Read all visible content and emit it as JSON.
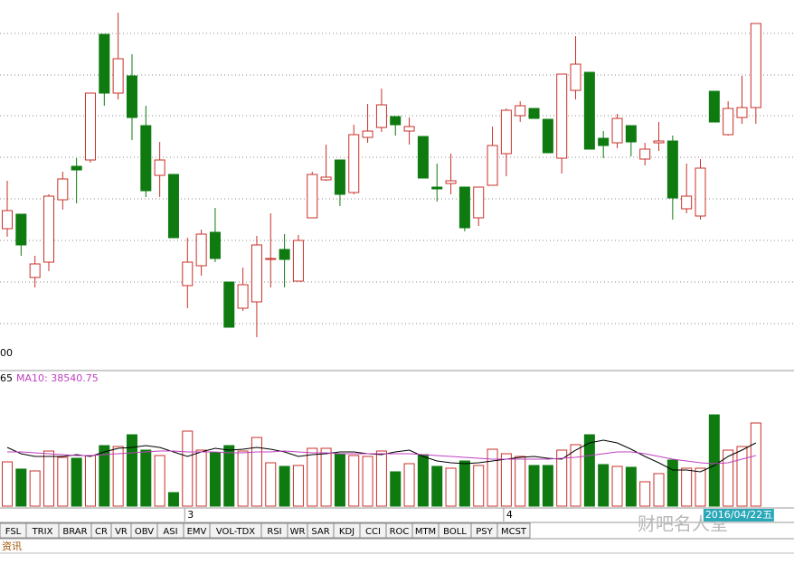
{
  "chart_data": {
    "type": "candlestick",
    "categories": [
      null,
      null,
      null,
      null,
      null,
      null,
      null,
      null,
      null,
      null,
      null,
      null,
      null,
      "3",
      null,
      null,
      null,
      null,
      null,
      null,
      null,
      null,
      null,
      null,
      null,
      null,
      null,
      null,
      null,
      null,
      null,
      null,
      null,
      null,
      null,
      null,
      "4",
      null,
      null,
      null,
      null,
      null,
      null,
      null,
      null,
      null,
      null,
      null,
      null,
      null,
      null,
      null,
      null,
      null,
      "2016/04/22五"
    ],
    "open": [
      147,
      163,
      93,
      110,
      179,
      216,
      223,
      362,
      297,
      316,
      261,
      206,
      207,
      84,
      106,
      143,
      88,
      59,
      66,
      113,
      124,
      89,
      159,
      201,
      223,
      187,
      248,
      259,
      271,
      255,
      249,
      193,
      197,
      193,
      159,
      195,
      230,
      272,
      280,
      268,
      225,
      300,
      320,
      247,
      242,
      261,
      224,
      242,
      244,
      169,
      161,
      299,
      251,
      270,
      281
    ],
    "high": [
      200,
      163,
      117,
      185,
      210,
      225,
      297,
      362,
      386,
      340,
      283,
      243,
      207,
      137,
      146,
      170,
      88,
      104,
      139,
      164,
      141,
      140,
      210,
      240,
      223,
      262,
      285,
      302,
      271,
      270,
      249,
      219,
      230,
      193,
      193,
      260,
      280,
      288,
      280,
      268,
      318,
      360,
      320,
      255,
      274,
      261,
      242,
      265,
      250,
      219,
      224,
      299,
      288,
      316,
      374
    ],
    "low": [
      138,
      117,
      82,
      100,
      168,
      175,
      220,
      283,
      290,
      245,
      182,
      182,
      137,
      59,
      95,
      110,
      38,
      56,
      27,
      82,
      82,
      89,
      159,
      200,
      172,
      185,
      242,
      254,
      250,
      240,
      203,
      177,
      185,
      144,
      150,
      195,
      205,
      265,
      269,
      231,
      208,
      290,
      235,
      225,
      236,
      227,
      217,
      233,
      157,
      164,
      157,
      265,
      250,
      263,
      263
    ],
    "close": [
      167,
      129,
      108,
      183,
      202,
      212,
      297,
      297,
      335,
      270,
      189,
      223,
      137,
      110,
      141,
      114,
      38,
      85,
      129,
      114,
      113,
      134,
      207,
      204,
      185,
      251,
      255,
      284,
      262,
      260,
      203,
      191,
      200,
      148,
      193,
      239,
      278,
      283,
      269,
      231,
      318,
      329,
      235,
      239,
      269,
      243,
      235,
      244,
      181,
      183,
      214,
      265,
      280,
      281,
      374
    ],
    "ylim": [
      0,
      400
    ],
    "yticks": [
      42,
      88,
      134,
      180,
      226,
      272,
      317,
      363
    ],
    "axis_text": "00",
    "up_color": "#c8302a",
    "down_color": "#0e7a10",
    "grid": true,
    "volume": {
      "values": [
        49,
        41,
        39,
        61,
        54,
        53,
        56,
        67,
        66,
        79,
        62,
        56,
        15,
        83,
        62,
        59,
        67,
        61,
        76,
        48,
        44,
        45,
        64,
        64,
        58,
        56,
        55,
        61,
        38,
        47,
        57,
        44,
        42,
        50,
        45,
        63,
        58,
        55,
        45,
        45,
        62,
        68,
        79,
        46,
        44,
        43,
        27,
        36,
        51,
        42,
        42,
        101,
        62,
        66,
        92
      ],
      "ylim": [
        0,
        150
      ],
      "label_left": "65",
      "ma_label": "MA10: 38540.75",
      "series": [
        {
          "name": "MA5",
          "color": "#000000",
          "values": [
            65,
            58,
            55,
            55,
            55,
            57,
            55,
            60,
            64,
            65,
            67,
            65,
            60,
            55,
            60,
            64,
            62,
            63,
            65,
            63,
            60,
            55,
            57,
            58,
            60,
            60,
            58,
            57,
            60,
            62,
            55,
            50,
            48,
            47,
            48,
            50,
            52,
            54,
            55,
            53,
            52,
            62,
            70,
            73,
            70,
            63,
            55,
            48,
            40,
            40,
            38,
            45,
            55,
            62,
            70
          ]
        },
        {
          "name": "MA10",
          "color": "#c040c0",
          "values": [
            60,
            60,
            59,
            58,
            57,
            56,
            56,
            57,
            58,
            59,
            60,
            61,
            61,
            60,
            60,
            60,
            59,
            59,
            60,
            60,
            61,
            60,
            59,
            59,
            58,
            58,
            58,
            58,
            58,
            58,
            57,
            56,
            55,
            54,
            53,
            52,
            52,
            52,
            52,
            52,
            53,
            54,
            56,
            58,
            60,
            60,
            58,
            55,
            52,
            50,
            48,
            47,
            48,
            52,
            56
          ]
        }
      ]
    },
    "tabs": [
      "FSL",
      "TRIX",
      "BRAR",
      "CR",
      "VR",
      "OBV",
      "ASI",
      "EMV",
      "VOL-TDX",
      "RSI",
      "WR",
      "SAR",
      "KDJ",
      "CCI",
      "ROC",
      "MTM",
      "BOLL",
      "PSY",
      "MCST"
    ],
    "bottom_tab": "资讯",
    "watermark": "财吧名人堂"
  }
}
